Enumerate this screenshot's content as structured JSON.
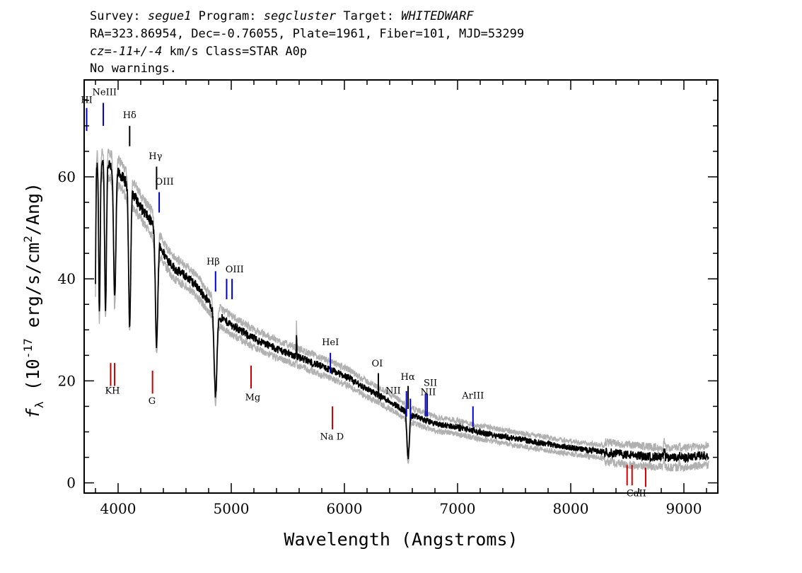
{
  "header": {
    "survey_label": "Survey:",
    "survey": "segue1",
    "program_label": "Program:",
    "program": "segcluster",
    "target_label": "Target:",
    "target": "WHITEDWARF",
    "line2": "RA=323.86954, Dec=-0.76055, Plate=1961, Fiber=101, MJD=53299",
    "cz_label": "cz",
    "cz_value": "-11+/-4",
    "cz_rest": " km/s Class=STAR A0p",
    "line4": "No warnings."
  },
  "chart_data": {
    "type": "line",
    "xlabel": "Wavelength (Angstroms)",
    "ylabel": "f_λ (10^-17 erg/s/cm^2/Ang)",
    "ylabel_parts": {
      "f": "f",
      "sub": "λ",
      "pre": " (10",
      "exp": "-17",
      "mid": " erg/s/cm",
      "exp2": "2",
      "post": "/Ang)"
    },
    "xlim": [
      3700,
      9300
    ],
    "ylim": [
      -2,
      79
    ],
    "x_ticks": [
      4000,
      5000,
      6000,
      7000,
      8000,
      9000
    ],
    "y_ticks": [
      0,
      20,
      40,
      60
    ],
    "grid": false,
    "continuum": [
      [
        3800,
        62
      ],
      [
        3900,
        63
      ],
      [
        4000,
        61
      ],
      [
        4100,
        58
      ],
      [
        4200,
        54
      ],
      [
        4300,
        51
      ],
      [
        4400,
        45
      ],
      [
        4500,
        42
      ],
      [
        4600,
        40.5
      ],
      [
        4700,
        38.5
      ],
      [
        4800,
        35.5
      ],
      [
        4900,
        32.5
      ],
      [
        5000,
        31
      ],
      [
        5200,
        28.3
      ],
      [
        5400,
        26.3
      ],
      [
        5600,
        24.6
      ],
      [
        5800,
        22.8
      ],
      [
        6000,
        21
      ],
      [
        6200,
        18.4
      ],
      [
        6400,
        16
      ],
      [
        6600,
        13.2
      ],
      [
        6800,
        11.6
      ],
      [
        7000,
        10.9
      ],
      [
        7200,
        9.9
      ],
      [
        7500,
        8.7
      ],
      [
        8000,
        6.9
      ],
      [
        8500,
        5.5
      ],
      [
        8800,
        5.0
      ],
      [
        9000,
        4.9
      ],
      [
        9200,
        5.5
      ]
    ],
    "absorption_lines": [
      {
        "center": 3797,
        "depth": 34,
        "width": 7
      },
      {
        "center": 3835,
        "depth": 33,
        "width": 9
      },
      {
        "center": 3889,
        "depth": 34,
        "width": 11
      },
      {
        "center": 3970,
        "depth": 36,
        "width": 14
      },
      {
        "center": 4102,
        "depth": 31,
        "width": 13
      },
      {
        "center": 4340,
        "depth": 27,
        "width": 15
      },
      {
        "center": 4861,
        "depth": 17,
        "width": 17
      },
      {
        "center": 6563,
        "depth": 5,
        "width": 15
      }
    ],
    "emission_features": [
      {
        "center": 5577,
        "height": 5,
        "width": 3
      },
      {
        "center": 6300,
        "height": 1.5,
        "width": 3
      },
      {
        "center": 8827,
        "height": 1.5,
        "width": 6
      },
      {
        "center": 8960,
        "height": 1.2,
        "width": 6
      }
    ],
    "series": [
      {
        "role": "flux",
        "color": "#000000"
      },
      {
        "role": "error",
        "color": "#b0b0b0"
      }
    ],
    "emission_line_markers": [
      {
        "label": "HI",
        "wavelength": 3722,
        "y_top": 73.5,
        "y_bot": 69,
        "color": "#0000cc"
      },
      {
        "label": "NeIII",
        "wavelength": 3869,
        "y_top": 74.5,
        "y_bot": 70,
        "color": "#0000cc"
      },
      {
        "label": "Hδ",
        "wavelength": 4102,
        "y_top": 70,
        "y_bot": 66,
        "color": "#000000"
      },
      {
        "label": "Hγ",
        "wavelength": 4340,
        "y_top": 62,
        "y_bot": 57.5,
        "color": "#000000"
      },
      {
        "label": "OIII",
        "wavelength": 4363,
        "y_top": 57,
        "y_bot": 53,
        "color": "#0000cc"
      },
      {
        "label": "Hβ",
        "wavelength": 4861,
        "y_top": 41.5,
        "y_bot": 37.5,
        "color": "#0000cc"
      },
      {
        "label": "OIII",
        "wavelength": 4959,
        "y_top": 40,
        "y_bot": 36,
        "color": "#0000cc"
      },
      {
        "label": "OIII",
        "wavelength": 5007,
        "y_top": 40,
        "y_bot": 36,
        "color": "#0000cc"
      },
      {
        "label": "HeI",
        "wavelength": 5876,
        "y_top": 25.5,
        "y_bot": 21.5,
        "color": "#0000cc"
      },
      {
        "label": "OI",
        "wavelength": 6300,
        "y_top": 21.5,
        "y_bot": 17,
        "color": "#000000"
      },
      {
        "label": "NII",
        "wavelength": 6548,
        "y_top": 18,
        "y_bot": 13,
        "color": "#0000cc"
      },
      {
        "label": "Hα",
        "wavelength": 6563,
        "y_top": 19,
        "y_bot": 14.5,
        "color": "#000000"
      },
      {
        "label": "NII",
        "wavelength": 6583,
        "y_top": 16.5,
        "y_bot": 12.5,
        "color": "#0000cc"
      },
      {
        "label": "SII",
        "wavelength": 6716,
        "y_top": 17.5,
        "y_bot": 13,
        "color": "#0000cc"
      },
      {
        "label": "SII",
        "wavelength": 6731,
        "y_top": 17.5,
        "y_bot": 13,
        "color": "#0000cc"
      },
      {
        "label": "ArIII",
        "wavelength": 7136,
        "y_top": 15,
        "y_bot": 11,
        "color": "#0000cc"
      }
    ],
    "emission_label_text": [
      {
        "text": "HI",
        "wavelength": 3722,
        "y": 74.5
      },
      {
        "text": "NeIII",
        "wavelength": 3880,
        "y": 76
      },
      {
        "text": "Hδ",
        "wavelength": 4102,
        "y": 71.5
      },
      {
        "text": "Hγ",
        "wavelength": 4330,
        "y": 63.5
      },
      {
        "text": "OIII",
        "wavelength": 4410,
        "y": 58.5
      },
      {
        "text": "Hβ",
        "wavelength": 4840,
        "y": 42.8
      },
      {
        "text": "OIII",
        "wavelength": 5030,
        "y": 41.3
      },
      {
        "text": "HeI",
        "wavelength": 5876,
        "y": 27
      },
      {
        "text": "OI",
        "wavelength": 6290,
        "y": 22.8
      },
      {
        "text": "NII",
        "wavelength": 6430,
        "y": 17.5
      },
      {
        "text": "Hα",
        "wavelength": 6560,
        "y": 20.2
      },
      {
        "text": "SII",
        "wavelength": 6760,
        "y": 19
      },
      {
        "text": "NII",
        "wavelength": 6740,
        "y": 17.2
      },
      {
        "text": "ArIII",
        "wavelength": 7136,
        "y": 16.5
      }
    ],
    "absorption_line_markers": [
      {
        "label": "K",
        "wavelength": 3934,
        "y_top": 23.5,
        "y_bot": 19,
        "color": "#cc0000"
      },
      {
        "label": "H",
        "wavelength": 3969,
        "y_top": 23.5,
        "y_bot": 19,
        "color": "#cc0000"
      },
      {
        "label": "G",
        "wavelength": 4304,
        "y_top": 22,
        "y_bot": 17.5,
        "color": "#cc0000"
      },
      {
        "label": "Mg",
        "wavelength": 5175,
        "y_top": 23,
        "y_bot": 18.5,
        "color": "#cc0000"
      },
      {
        "label": "Na D",
        "wavelength": 5894,
        "y_top": 15,
        "y_bot": 10.5,
        "color": "#cc0000"
      },
      {
        "label": "CaII",
        "wavelength": 8498,
        "y_top": 3.5,
        "y_bot": -0.5,
        "color": "#cc0000"
      },
      {
        "label": "CaII",
        "wavelength": 8542,
        "y_top": 3.5,
        "y_bot": -0.5,
        "color": "#cc0000"
      },
      {
        "label": "CaII",
        "wavelength": 8662,
        "y_top": 3,
        "y_bot": -0.8,
        "color": "#cc0000"
      }
    ],
    "absorption_label_text": [
      {
        "text": "KH",
        "wavelength": 3950,
        "y": 17.5
      },
      {
        "text": "G",
        "wavelength": 4300,
        "y": 15.5
      },
      {
        "text": "Mg",
        "wavelength": 5190,
        "y": 16.2
      },
      {
        "text": "Na  D",
        "wavelength": 5890,
        "y": 8.5
      },
      {
        "text": "CaII",
        "wavelength": 8580,
        "y": -2.6
      }
    ]
  }
}
